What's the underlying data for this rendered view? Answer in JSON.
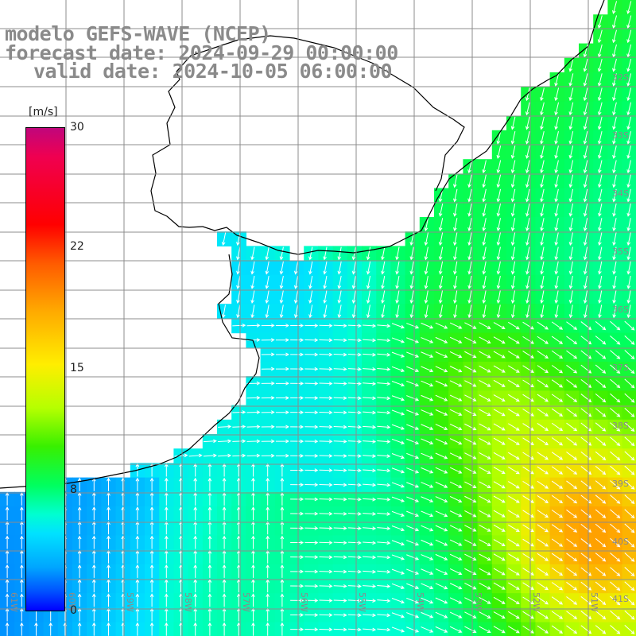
{
  "title": {
    "line1": "modelo GEFS-WAVE (NCEP)",
    "line2": "forecast date: 2024-09-29 00:00:00",
    "line3": "valid date: 2024-10-05 06:00:00"
  },
  "colorbar": {
    "unit": "[m/s]",
    "ticks": [
      "30",
      "22",
      "15",
      "8",
      "0"
    ],
    "tick_values": [
      30,
      22,
      15,
      8,
      0
    ],
    "range": [
      0,
      30
    ]
  },
  "axes": {
    "lat_labels": [
      "32S",
      "33S",
      "34S",
      "35S",
      "36S",
      "37S",
      "38S",
      "39S",
      "40S",
      "41S"
    ],
    "lon_labels": [
      "61W",
      "60W",
      "59W",
      "58W",
      "57W",
      "56W",
      "55W",
      "54W",
      "53W",
      "52W",
      "51W"
    ]
  },
  "colors": {
    "land": "#ffffff",
    "coast": "#000000",
    "grid": "#8c8c8c",
    "arrows": "#ffffff",
    "label": "#8a8a8a"
  },
  "field": {
    "variable": "wind speed with direction arrows",
    "min": 6,
    "max": 20,
    "max_region": "southeast (around 40S 52W)"
  }
}
